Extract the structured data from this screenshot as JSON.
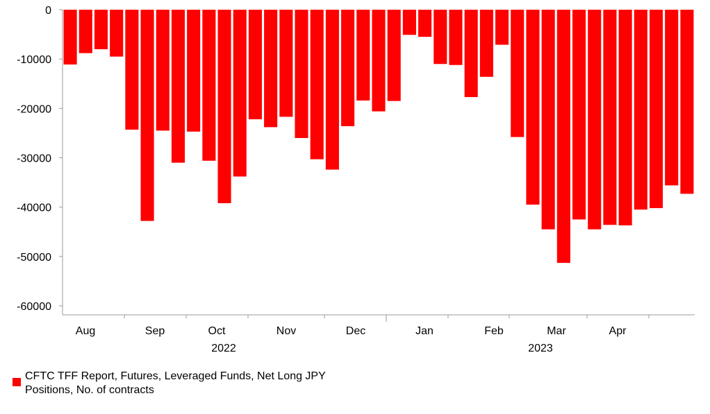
{
  "chart_data": {
    "type": "bar",
    "xlabel": "",
    "ylabel": "",
    "ylim": [
      -60000,
      0
    ],
    "yticks": [
      0,
      -10000,
      -20000,
      -30000,
      -40000,
      -50000,
      -60000
    ],
    "grid": false,
    "legend_position": "bottom-left",
    "color": "#ff0000",
    "month_labels": [
      "Aug",
      "Sep",
      "Oct",
      "Nov",
      "Dec",
      "Jan",
      "Feb",
      "Mar",
      "Apr"
    ],
    "year_labels": [
      "2022",
      "2023"
    ],
    "series": [
      {
        "name": "CFTC TFF Report, Futures, Leveraged Funds, Net Long JPY Positions, No. of contracts",
        "values": [
          -11100,
          -8800,
          -8000,
          -9500,
          -24300,
          -42800,
          -24500,
          -31000,
          -24700,
          -30600,
          -39200,
          -33800,
          -22200,
          -23800,
          -21700,
          -26000,
          -30300,
          -32400,
          -23600,
          -18400,
          -20600,
          -18500,
          -5100,
          -5500,
          -11000,
          -11200,
          -17700,
          -13600,
          -7100,
          -25800,
          -39500,
          -44500,
          -51300,
          -42500,
          -44500,
          -43600,
          -43700,
          -40500,
          -40200,
          -35600,
          -37300
        ]
      }
    ]
  }
}
